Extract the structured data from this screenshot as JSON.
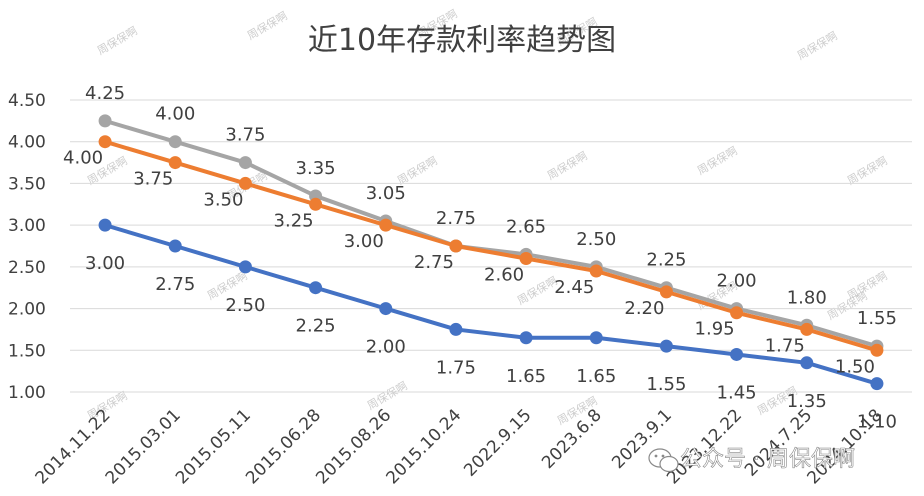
{
  "chart_data": {
    "type": "line",
    "title": "近10年存款利率趋势图",
    "xlabel": "",
    "ylabel": "",
    "ylim": [
      1.0,
      4.5
    ],
    "yticks": [
      "1.00",
      "1.50",
      "2.00",
      "2.50",
      "3.00",
      "3.50",
      "4.00",
      "4.50"
    ],
    "grid": true,
    "legend": "none",
    "categories": [
      "2014.11.22",
      "2015.03.01",
      "2015.05.11",
      "2015.06.28",
      "2015.08.26",
      "2015.10.24",
      "2022.9.15",
      "2023.6.8",
      "2023.9.1",
      "2023.12.22",
      "2024.7.25",
      "2024.10.18"
    ],
    "series": [
      {
        "color": "#a5a5a5",
        "values": [
          4.25,
          4.0,
          3.75,
          3.35,
          3.05,
          2.75,
          2.65,
          2.5,
          2.25,
          2.0,
          1.8,
          1.55
        ],
        "labels": [
          "4.25",
          "4.00",
          "3.75",
          "3.35",
          "3.05",
          "2.75",
          "2.65",
          "2.50",
          "2.25",
          "2.00",
          "1.80",
          "1.55"
        ]
      },
      {
        "color": "#ed7d31",
        "values": [
          4.0,
          3.75,
          3.5,
          3.25,
          3.0,
          2.75,
          2.6,
          2.45,
          2.2,
          1.95,
          1.75,
          1.5
        ],
        "labels": [
          "4.00",
          "3.75",
          "3.50",
          "3.25",
          "3.00",
          "2.75",
          "2.60",
          "2.45",
          "2.20",
          "1.95",
          "1.75",
          "1.50"
        ]
      },
      {
        "color": "#4472c4",
        "values": [
          3.0,
          2.75,
          2.5,
          2.25,
          2.0,
          1.75,
          1.65,
          1.65,
          1.55,
          1.45,
          1.35,
          1.1
        ],
        "labels": [
          "3.00",
          "2.75",
          "2.50",
          "2.25",
          "2.00",
          "1.75",
          "1.65",
          "1.65",
          "1.55",
          "1.45",
          "1.35",
          "1.10"
        ]
      }
    ]
  },
  "watermark": {
    "text": "周保保啊",
    "brand": "公众号 · 周保保啊"
  }
}
